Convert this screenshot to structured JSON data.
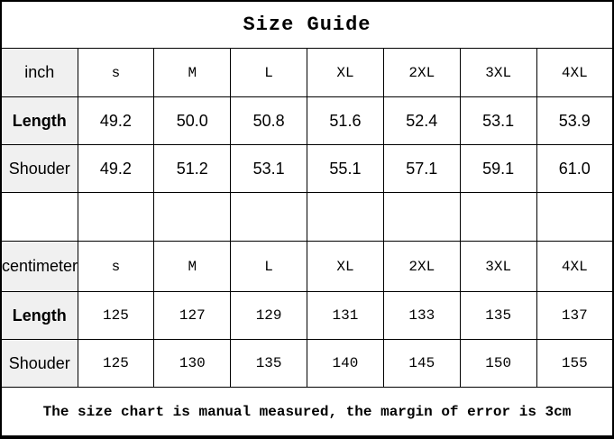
{
  "chart_data": {
    "type": "table",
    "title": "Size Guide",
    "sections": [
      {
        "unit_label": "inch",
        "sizes": [
          "s",
          "M",
          "L",
          "XL",
          "2XL",
          "3XL",
          "4XL"
        ],
        "rows": [
          {
            "label": "Length",
            "values": [
              "49.2",
              "50.0",
              "50.8",
              "51.6",
              "52.4",
              "53.1",
              "53.9"
            ]
          },
          {
            "label": "Shouder",
            "values": [
              "49.2",
              "51.2",
              "53.1",
              "55.1",
              "57.1",
              "59.1",
              "61.0"
            ]
          }
        ]
      },
      {
        "unit_label": "centimeter",
        "sizes": [
          "s",
          "M",
          "L",
          "XL",
          "2XL",
          "3XL",
          "4XL"
        ],
        "rows": [
          {
            "label": "Length",
            "values": [
              "125",
              "127",
              "129",
              "131",
              "133",
              "135",
              "137"
            ]
          },
          {
            "label": "Shouder",
            "values": [
              "125",
              "130",
              "135",
              "140",
              "145",
              "150",
              "155"
            ]
          }
        ]
      }
    ],
    "footer_note": "The size chart is manual measured, the margin of error is 3cm",
    "colors": {
      "label_column_bg": "#f0f0f0",
      "border": "#000000",
      "text": "#000000",
      "background": "#ffffff"
    }
  }
}
